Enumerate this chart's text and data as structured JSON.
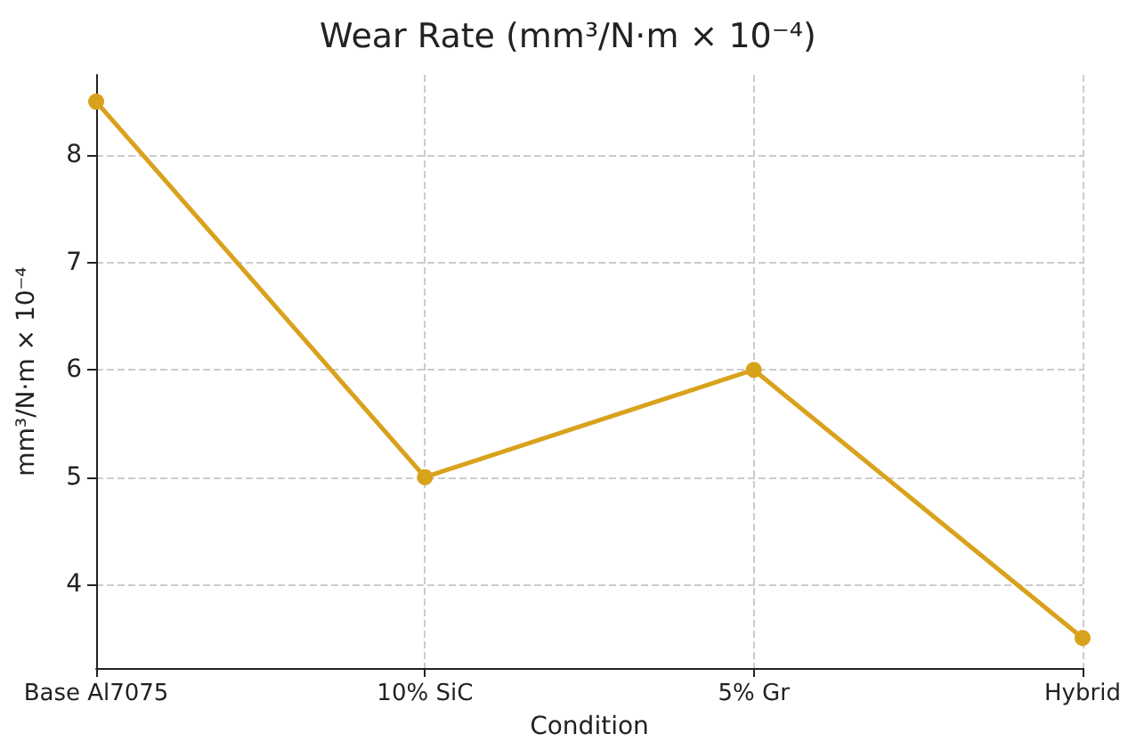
{
  "chart_data": {
    "type": "line",
    "title": "Wear Rate (mm³/N·m × 10⁻⁴)",
    "xlabel": "Condition",
    "ylabel": "mm³/N·m × 10⁻⁴",
    "categories": [
      "Base Al7075",
      "10% SiC",
      "5% Gr",
      "Hybrid"
    ],
    "series": [
      {
        "color": "#d9a21c",
        "values": [
          8.5,
          5,
          6,
          3.5
        ]
      }
    ],
    "ylim": [
      3.22,
      8.75
    ],
    "yticks": [
      4,
      5,
      6,
      7,
      8
    ],
    "grid": true,
    "marker": "circle",
    "line_style": "solid"
  }
}
